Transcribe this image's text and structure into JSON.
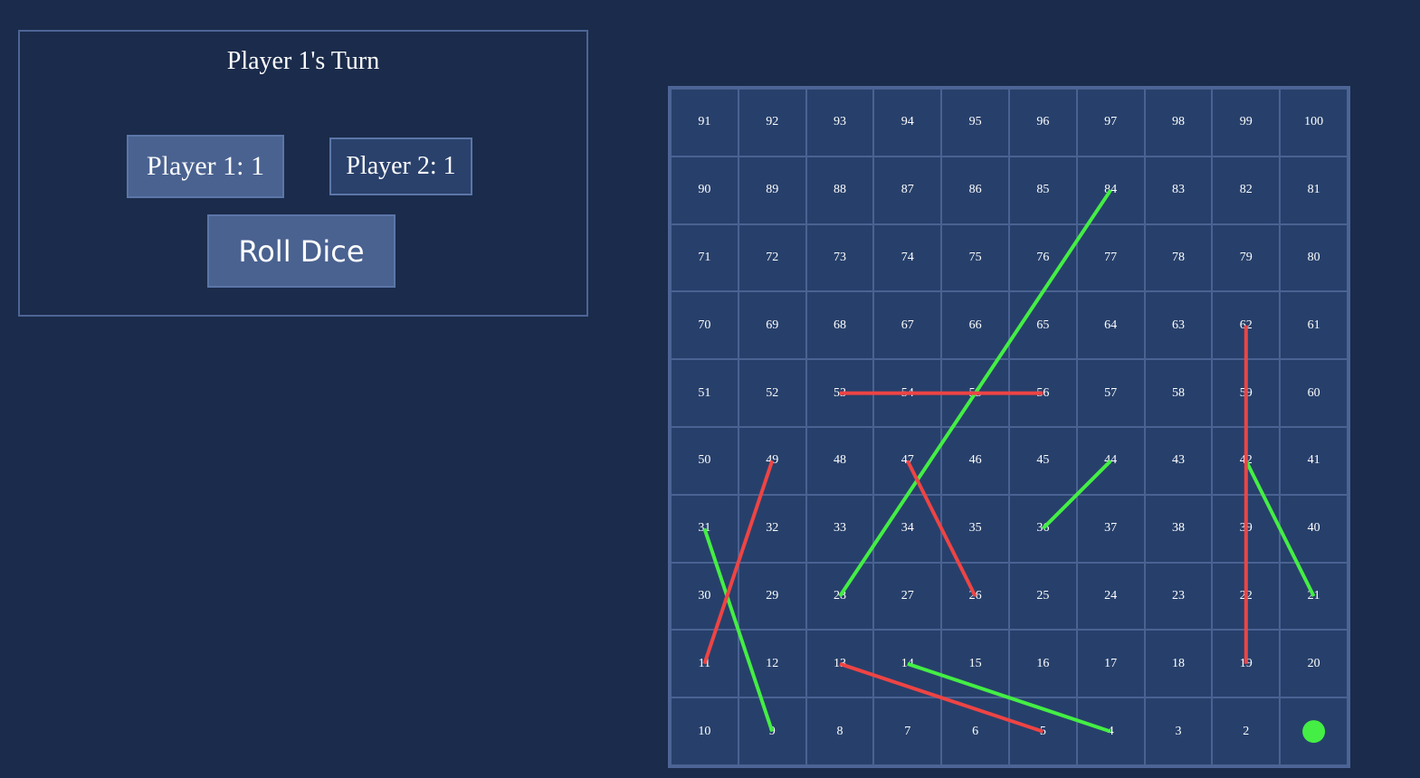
{
  "status": {
    "turn_text": "Player 1's Turn"
  },
  "players": [
    {
      "label": "Player 1: 1",
      "position": 1,
      "active": true
    },
    {
      "label": "Player 2: 1",
      "position": 1,
      "active": false
    }
  ],
  "controls": {
    "roll_label": "Roll Dice"
  },
  "board": {
    "size": 100,
    "token_color": "#44ee44",
    "ladder_color": "#44ee44",
    "snake_color": "#ee4444",
    "ladders": [
      [
        28,
        84
      ],
      [
        36,
        44
      ],
      [
        21,
        42
      ],
      [
        9,
        31
      ],
      [
        4,
        14
      ]
    ],
    "snakes": [
      [
        56,
        53
      ],
      [
        49,
        11
      ],
      [
        47,
        26
      ],
      [
        62,
        19
      ],
      [
        13,
        5
      ]
    ]
  }
}
